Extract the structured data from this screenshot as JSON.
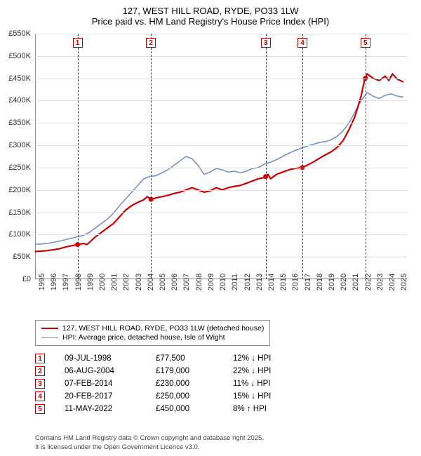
{
  "title": {
    "line1": "127, WEST HILL ROAD, RYDE, PO33 1LW",
    "line2": "Price paid vs. HM Land Registry's House Price Index (HPI)",
    "fontsize": 13,
    "color": "#000000"
  },
  "chart": {
    "type": "line",
    "background_color": "#ffffff",
    "grid_color": "#e0e0e0",
    "axis_color": "#888888",
    "xlim": [
      1995,
      2025.8
    ],
    "ylim": [
      0,
      550000
    ],
    "ytick_step": 50000,
    "ytick_labels": [
      "£0",
      "£50K",
      "£100K",
      "£150K",
      "£200K",
      "£250K",
      "£300K",
      "£350K",
      "£400K",
      "£450K",
      "£500K",
      "£550K"
    ],
    "xtick_years": [
      1995,
      1996,
      1997,
      1998,
      1999,
      2000,
      2001,
      2002,
      2003,
      2004,
      2005,
      2006,
      2007,
      2008,
      2009,
      2010,
      2011,
      2012,
      2013,
      2014,
      2015,
      2016,
      2017,
      2018,
      2019,
      2020,
      2021,
      2022,
      2023,
      2024,
      2025
    ],
    "label_fontsize": 11,
    "series": [
      {
        "name": "price_paid",
        "legend": "127, WEST HILL ROAD, RYDE, PO33 1LW (detached house)",
        "color": "#cc0000",
        "line_width": 2.2,
        "data": [
          [
            1995,
            62000
          ],
          [
            1996,
            64000
          ],
          [
            1997,
            68000
          ],
          [
            1997.5,
            72000
          ],
          [
            1998,
            75000
          ],
          [
            1998.5,
            77500
          ],
          [
            1999,
            80000
          ],
          [
            1999.3,
            78000
          ],
          [
            1999.6,
            85000
          ],
          [
            2000,
            95000
          ],
          [
            2000.5,
            105000
          ],
          [
            2001,
            115000
          ],
          [
            2001.5,
            125000
          ],
          [
            2002,
            140000
          ],
          [
            2002.5,
            155000
          ],
          [
            2003,
            165000
          ],
          [
            2003.5,
            172000
          ],
          [
            2004,
            178000
          ],
          [
            2004.3,
            185000
          ],
          [
            2004.6,
            179000
          ],
          [
            2005,
            182000
          ],
          [
            2005.5,
            185000
          ],
          [
            2006,
            188000
          ],
          [
            2006.5,
            192000
          ],
          [
            2007,
            195000
          ],
          [
            2007.5,
            200000
          ],
          [
            2008,
            205000
          ],
          [
            2008.5,
            200000
          ],
          [
            2009,
            195000
          ],
          [
            2009.5,
            198000
          ],
          [
            2010,
            205000
          ],
          [
            2010.5,
            200000
          ],
          [
            2011,
            205000
          ],
          [
            2011.5,
            208000
          ],
          [
            2012,
            210000
          ],
          [
            2012.5,
            215000
          ],
          [
            2013,
            220000
          ],
          [
            2013.5,
            225000
          ],
          [
            2014,
            228000
          ],
          [
            2014.1,
            230000
          ],
          [
            2014.3,
            235000
          ],
          [
            2014.5,
            225000
          ],
          [
            2015,
            235000
          ],
          [
            2015.5,
            240000
          ],
          [
            2016,
            245000
          ],
          [
            2016.5,
            248000
          ],
          [
            2017,
            250000
          ],
          [
            2017.1,
            250000
          ],
          [
            2017.5,
            255000
          ],
          [
            2018,
            262000
          ],
          [
            2018.5,
            270000
          ],
          [
            2019,
            278000
          ],
          [
            2019.5,
            285000
          ],
          [
            2020,
            295000
          ],
          [
            2020.5,
            310000
          ],
          [
            2021,
            335000
          ],
          [
            2021.5,
            365000
          ],
          [
            2022,
            410000
          ],
          [
            2022.3,
            448000
          ],
          [
            2022.36,
            450000
          ],
          [
            2022.5,
            460000
          ],
          [
            2023,
            450000
          ],
          [
            2023.5,
            445000
          ],
          [
            2024,
            455000
          ],
          [
            2024.3,
            445000
          ],
          [
            2024.6,
            460000
          ],
          [
            2025,
            448000
          ],
          [
            2025.5,
            442000
          ]
        ]
      },
      {
        "name": "hpi",
        "legend": "HPI: Average price, detached house, Isle of Wight",
        "color": "#6f93c6",
        "line_width": 1.6,
        "data": [
          [
            1995,
            78000
          ],
          [
            1996,
            80000
          ],
          [
            1997,
            85000
          ],
          [
            1998,
            92000
          ],
          [
            1998.5,
            95000
          ],
          [
            1999,
            98000
          ],
          [
            1999.5,
            105000
          ],
          [
            2000,
            115000
          ],
          [
            2000.5,
            125000
          ],
          [
            2001,
            135000
          ],
          [
            2001.5,
            148000
          ],
          [
            2002,
            165000
          ],
          [
            2002.5,
            180000
          ],
          [
            2003,
            195000
          ],
          [
            2003.5,
            210000
          ],
          [
            2004,
            225000
          ],
          [
            2004.5,
            230000
          ],
          [
            2005,
            232000
          ],
          [
            2005.5,
            238000
          ],
          [
            2006,
            245000
          ],
          [
            2006.5,
            255000
          ],
          [
            2007,
            265000
          ],
          [
            2007.5,
            275000
          ],
          [
            2008,
            270000
          ],
          [
            2008.5,
            255000
          ],
          [
            2009,
            235000
          ],
          [
            2009.5,
            240000
          ],
          [
            2010,
            248000
          ],
          [
            2010.5,
            245000
          ],
          [
            2011,
            240000
          ],
          [
            2011.5,
            242000
          ],
          [
            2012,
            238000
          ],
          [
            2012.5,
            242000
          ],
          [
            2013,
            248000
          ],
          [
            2013.5,
            250000
          ],
          [
            2014,
            258000
          ],
          [
            2014.5,
            262000
          ],
          [
            2015,
            268000
          ],
          [
            2015.5,
            275000
          ],
          [
            2016,
            282000
          ],
          [
            2016.5,
            288000
          ],
          [
            2017,
            293000
          ],
          [
            2017.5,
            298000
          ],
          [
            2018,
            302000
          ],
          [
            2018.5,
            306000
          ],
          [
            2019,
            308000
          ],
          [
            2019.5,
            312000
          ],
          [
            2020,
            320000
          ],
          [
            2020.5,
            332000
          ],
          [
            2021,
            350000
          ],
          [
            2021.5,
            375000
          ],
          [
            2022,
            400000
          ],
          [
            2022.5,
            418000
          ],
          [
            2023,
            410000
          ],
          [
            2023.5,
            405000
          ],
          [
            2024,
            412000
          ],
          [
            2024.5,
            415000
          ],
          [
            2025,
            410000
          ],
          [
            2025.5,
            408000
          ]
        ]
      }
    ],
    "sale_markers": [
      {
        "n": "1",
        "year": 1998.52,
        "price": 77500
      },
      {
        "n": "2",
        "year": 2004.6,
        "price": 179000
      },
      {
        "n": "3",
        "year": 2014.1,
        "price": 230000
      },
      {
        "n": "4",
        "year": 2017.14,
        "price": 250000
      },
      {
        "n": "5",
        "year": 2022.36,
        "price": 450000
      }
    ],
    "marker_box_color": "#cc0000",
    "marker_dash_color": "#cc0000",
    "dot_radius": 3.5
  },
  "legend": {
    "border_color": "#888888",
    "fontsize": 10.5
  },
  "sales_table": {
    "fontsize": 11.5,
    "rows": [
      {
        "n": "1",
        "date": "09-JUL-1998",
        "price": "£77,500",
        "diff": "12% ↓ HPI"
      },
      {
        "n": "2",
        "date": "06-AUG-2004",
        "price": "£179,000",
        "diff": "22% ↓ HPI"
      },
      {
        "n": "3",
        "date": "07-FEB-2014",
        "price": "£230,000",
        "diff": "11% ↓ HPI"
      },
      {
        "n": "4",
        "date": "20-FEB-2017",
        "price": "£250,000",
        "diff": "15% ↓ HPI"
      },
      {
        "n": "5",
        "date": "11-MAY-2022",
        "price": "£450,000",
        "diff": "8% ↑ HPI"
      }
    ]
  },
  "footer": {
    "line1": "Contains HM Land Registry data © Crown copyright and database right 2025.",
    "line2": "It is licensed under the Open Government Licence v3.0.",
    "fontsize": 9.5,
    "color": "#444444"
  }
}
